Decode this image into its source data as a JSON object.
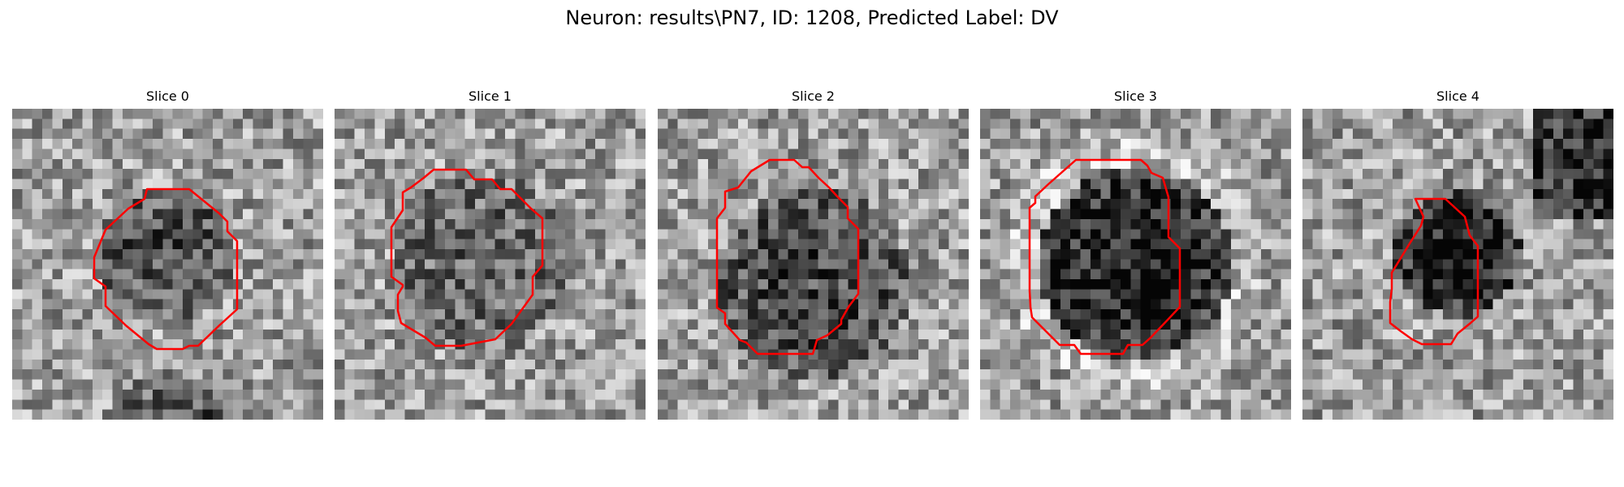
{
  "figure": {
    "suptitle": "Neuron: results\\PN7, ID: 1208, Predicted Label: DV",
    "contour_color": "#ff0000",
    "slices": [
      {
        "title": "Slice 0"
      },
      {
        "title": "Slice 1"
      },
      {
        "title": "Slice 2"
      },
      {
        "title": "Slice 3"
      },
      {
        "title": "Slice 4"
      }
    ]
  }
}
